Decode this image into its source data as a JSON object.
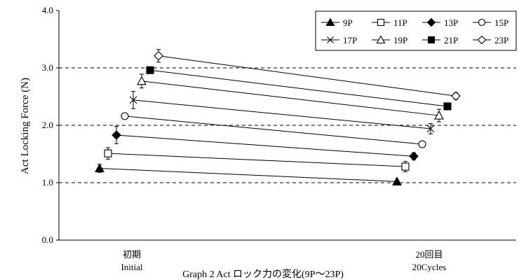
{
  "chart_data": {
    "type": "line",
    "categories": [
      "初期",
      "20回目"
    ],
    "category_sublabels": [
      "Initial",
      "20Cycles"
    ],
    "ylabel": "Act  Locking Force (N)",
    "xlabel": "",
    "caption": "Graph 2 Act ロック力の変化(9P～23P)",
    "ylim": [
      0.0,
      4.0
    ],
    "yticks": [
      0.0,
      1.0,
      2.0,
      3.0,
      4.0
    ],
    "ytick_labels": [
      "0.0",
      "1.0",
      "2.0",
      "3.0",
      "4.0"
    ],
    "grid": "horizontal dashed at 1.0, 2.0, 3.0",
    "legend_position": "top-right",
    "series": [
      {
        "name": "9P",
        "marker": "triangle-filled",
        "values": [
          1.25,
          1.02
        ],
        "err": [
          0.07,
          0.02
        ]
      },
      {
        "name": "11P",
        "marker": "square-open",
        "values": [
          1.51,
          1.28
        ],
        "err": [
          0.1,
          0.09
        ]
      },
      {
        "name": "13P",
        "marker": "diamond-filled",
        "values": [
          1.83,
          1.46
        ],
        "err": [
          0.15,
          0.06
        ]
      },
      {
        "name": "15P",
        "marker": "circle-open",
        "values": [
          2.16,
          1.67
        ],
        "err": [
          0.02,
          0.03
        ]
      },
      {
        "name": "17P",
        "marker": "x",
        "values": [
          2.44,
          1.94
        ],
        "err": [
          0.15,
          0.09
        ]
      },
      {
        "name": "19P",
        "marker": "triangle-open",
        "values": [
          2.77,
          2.17
        ],
        "err": [
          0.12,
          0.11
        ]
      },
      {
        "name": "21P",
        "marker": "square-filled",
        "values": [
          2.96,
          2.33
        ],
        "err": [
          0.02,
          0.02
        ]
      },
      {
        "name": "23P",
        "marker": "diamond-open",
        "values": [
          3.21,
          2.51
        ],
        "err": [
          0.11,
          0.06
        ]
      }
    ]
  }
}
